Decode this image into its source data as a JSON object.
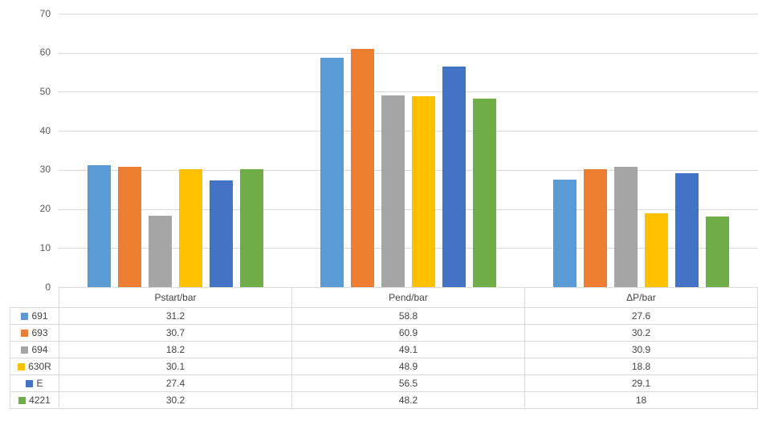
{
  "chart_data": {
    "type": "bar",
    "title": "",
    "xlabel": "",
    "ylabel": "",
    "categories": [
      "Pstart/bar",
      "Pend/bar",
      "ΔP/bar"
    ],
    "series": [
      {
        "name": "691",
        "color": "#5B9BD5",
        "values": [
          31.2,
          58.8,
          27.6
        ]
      },
      {
        "name": "693",
        "color": "#ED7D31",
        "values": [
          30.7,
          60.9,
          30.2
        ]
      },
      {
        "name": "694",
        "color": "#A5A5A5",
        "values": [
          18.2,
          49.1,
          30.9
        ]
      },
      {
        "name": "630R",
        "color": "#FFC000",
        "values": [
          30.1,
          48.9,
          18.8
        ]
      },
      {
        "name": "E",
        "color": "#4472C4",
        "values": [
          27.4,
          56.5,
          29.1
        ]
      },
      {
        "name": "4221",
        "color": "#70AD47",
        "values": [
          30.2,
          48.2,
          18
        ]
      }
    ],
    "ylim": [
      0,
      70
    ],
    "yticks": [
      0,
      10,
      20,
      30,
      40,
      50,
      60,
      70
    ],
    "grid": "horizontal",
    "legend_position": "table-left",
    "gridline_color": "#d9d9d9",
    "axis_text_color": "#595959"
  },
  "data_table": {
    "headers": [
      "Pstart/bar",
      "Pend/bar",
      "ΔP/bar"
    ],
    "rows": [
      {
        "name": "691",
        "values": [
          "31.2",
          "58.8",
          "27.6"
        ]
      },
      {
        "name": "693",
        "values": [
          "30.7",
          "60.9",
          "30.2"
        ]
      },
      {
        "name": "694",
        "values": [
          "18.2",
          "49.1",
          "30.9"
        ]
      },
      {
        "name": "630R",
        "values": [
          "30.1",
          "48.9",
          "18.8"
        ]
      },
      {
        "name": "E",
        "values": [
          "27.4",
          "56.5",
          "29.1"
        ]
      },
      {
        "name": "4221",
        "values": [
          "30.2",
          "48.2",
          "18"
        ]
      }
    ]
  }
}
